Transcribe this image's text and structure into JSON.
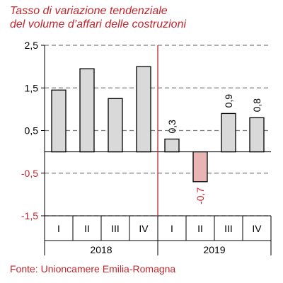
{
  "title_line1": "Tasso di variazione tendenziale",
  "title_line2": "del volume d’affari delle costruzioni",
  "source": "Fonte: Unioncamere Emilia-Romagna",
  "colors": {
    "accent": "#c0262d",
    "bar_positive": "#d9d9d9",
    "bar_negative": "#e8b4b4",
    "grid": "#7f7f7f"
  },
  "chart_data": {
    "type": "bar",
    "title": "Tasso di variazione tendenziale del volume d’affari delle costruzioni",
    "categories": [
      "I",
      "II",
      "III",
      "IV",
      "I",
      "II",
      "III",
      "IV"
    ],
    "groups": [
      {
        "label": "2018",
        "categories": [
          "I",
          "II",
          "III",
          "IV"
        ]
      },
      {
        "label": "2019",
        "categories": [
          "I",
          "II",
          "III",
          "IV"
        ]
      }
    ],
    "values": [
      1.45,
      1.95,
      1.25,
      2.0,
      0.3,
      -0.7,
      0.9,
      0.8
    ],
    "data_labels": [
      "",
      "",
      "",
      "",
      "0,3",
      "-0,7",
      "0,9",
      "0,8"
    ],
    "y_ticks": [
      2.5,
      1.5,
      0.5,
      -0.5,
      -1.5
    ],
    "y_tick_labels": [
      "2,5",
      "1,5",
      "0,5",
      "-0,5",
      "-1,5"
    ],
    "ylim": [
      -1.5,
      2.5
    ],
    "grid": true,
    "xlabel": "",
    "ylabel": ""
  }
}
